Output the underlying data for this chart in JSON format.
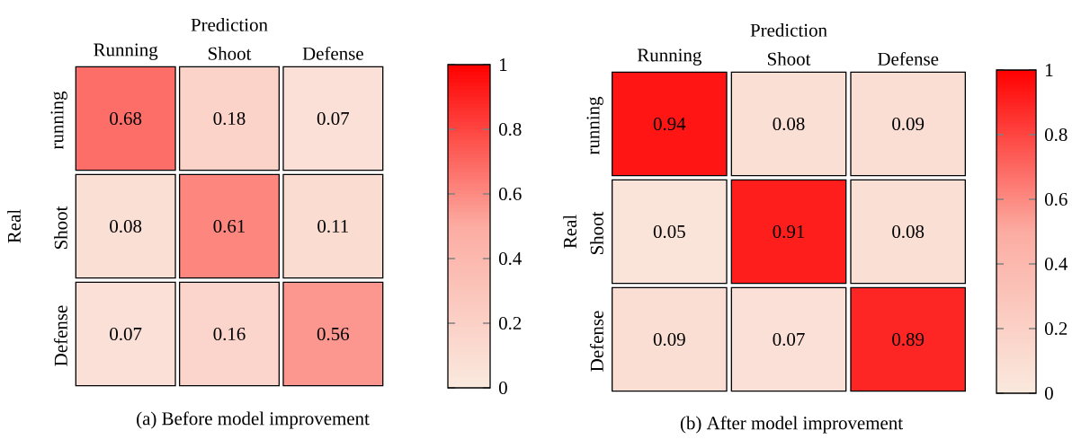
{
  "chart_data": [
    {
      "type": "heatmap",
      "xlabel": "Prediction",
      "ylabel": "Real",
      "categories": [
        "Running",
        "Shoot",
        "Defense"
      ],
      "y_categories": [
        "running",
        "Shoot",
        "Defense"
      ],
      "cells": [
        [
          0.68,
          0.18,
          0.07
        ],
        [
          0.08,
          0.61,
          0.11
        ],
        [
          0.07,
          0.16,
          0.56
        ]
      ],
      "clim": [
        0,
        1
      ],
      "cticks": [
        0,
        0.2,
        0.4,
        0.6,
        0.8,
        1
      ],
      "data_labels": true,
      "annotations": [
        "(a) Before model improvement"
      ]
    },
    {
      "type": "heatmap",
      "xlabel": "Prediction",
      "ylabel": "Real",
      "categories": [
        "Running",
        "Shoot",
        "Defense"
      ],
      "y_categories": [
        "running",
        "Shoot",
        "Defense"
      ],
      "cells": [
        [
          0.94,
          0.08,
          0.09
        ],
        [
          0.05,
          0.91,
          0.08
        ],
        [
          0.09,
          0.07,
          0.89
        ]
      ],
      "clim": [
        0,
        1
      ],
      "cticks": [
        0,
        0.2,
        0.4,
        0.6,
        0.8,
        1
      ],
      "data_labels": true,
      "annotations": [
        "(b) After model improvement"
      ]
    }
  ]
}
